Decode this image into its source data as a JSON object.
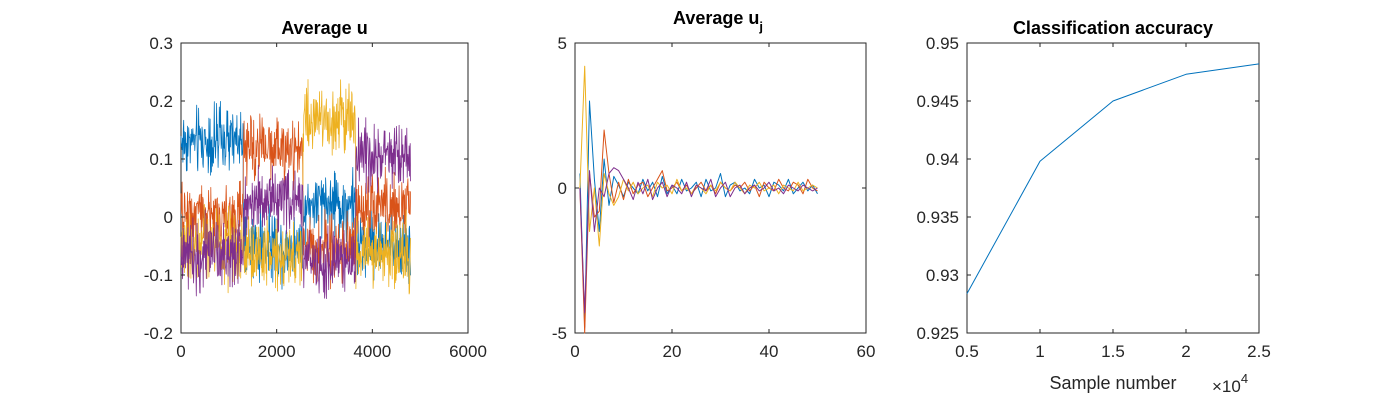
{
  "figure": {
    "colors": [
      "#0072bd",
      "#d95319",
      "#edb120",
      "#7e2f8e"
    ]
  },
  "chart_data": [
    {
      "type": "line",
      "title": "Average u",
      "xlabel": "",
      "ylabel": "",
      "xlim": [
        0,
        6000
      ],
      "ylim": [
        -0.2,
        0.3
      ],
      "xticks": [
        0,
        2000,
        4000,
        6000
      ],
      "xtick_labels": [
        "0",
        "2000",
        "4000",
        "6000"
      ],
      "yticks": [
        -0.2,
        -0.1,
        0,
        0.1,
        0.2,
        0.3
      ],
      "ytick_labels": [
        "-0.2",
        "-0.1",
        "0",
        "0.1",
        "0.2",
        "0.3"
      ],
      "grid": false,
      "x_range": [
        0,
        4800
      ],
      "segment_edges": [
        0,
        1300,
        2550,
        3650,
        4800
      ],
      "series": [
        {
          "color": "#0072bd",
          "segment_levels": [
            0.13,
            -0.05,
            0.02,
            -0.05
          ]
        },
        {
          "color": "#d95319",
          "segment_levels": [
            0.0,
            0.12,
            -0.05,
            0.02
          ]
        },
        {
          "color": "#edb120",
          "segment_levels": [
            -0.05,
            -0.06,
            0.17,
            -0.06
          ]
        },
        {
          "color": "#7e2f8e",
          "segment_levels": [
            -0.06,
            0.03,
            -0.08,
            0.1
          ]
        }
      ],
      "noise_amplitude": 0.028
    },
    {
      "type": "line",
      "title": "Average u",
      "title_subscript": "j",
      "xlabel": "",
      "ylabel": "",
      "xlim": [
        0,
        60
      ],
      "ylim": [
        -5,
        5
      ],
      "xticks": [
        0,
        20,
        40,
        60
      ],
      "xtick_labels": [
        "0",
        "20",
        "40",
        "60"
      ],
      "yticks": [
        -5,
        0,
        5
      ],
      "ytick_labels": [
        "-5",
        "0",
        "5"
      ],
      "grid": false,
      "x": [
        1,
        2,
        3,
        4,
        5,
        6,
        7,
        8,
        9,
        10,
        11,
        12,
        13,
        14,
        15,
        16,
        17,
        18,
        19,
        20,
        21,
        22,
        23,
        24,
        25,
        26,
        27,
        28,
        29,
        30,
        31,
        32,
        33,
        34,
        35,
        36,
        37,
        38,
        39,
        40,
        41,
        42,
        43,
        44,
        45,
        46,
        47,
        48,
        49,
        50
      ],
      "series": [
        {
          "color": "#0072bd",
          "values": [
            0.5,
            -4.8,
            3.0,
            0.3,
            -1.5,
            1.0,
            -0.6,
            0.4,
            0.1,
            -0.3,
            0.2,
            0.0,
            -0.2,
            0.3,
            -0.1,
            0.2,
            -0.3,
            0.4,
            -0.2,
            0.1,
            -0.2,
            0.3,
            -0.1,
            0.0,
            0.2,
            -0.3,
            0.3,
            -0.1,
            0.0,
            0.5,
            -0.3,
            0.1,
            0.2,
            -0.1,
            0.0,
            -0.2,
            0.3,
            0.0,
            0.1,
            -0.3,
            0.2,
            0.1,
            -0.1,
            0.3,
            -0.2,
            0.0,
            0.2,
            -0.1,
            0.1,
            -0.2
          ]
        },
        {
          "color": "#d95319",
          "values": [
            0.0,
            -5.0,
            0.5,
            -1.0,
            -0.8,
            2.0,
            0.5,
            -0.5,
            0.2,
            -0.4,
            0.3,
            -0.2,
            0.1,
            0.2,
            -0.3,
            0.0,
            0.3,
            0.6,
            -0.1,
            0.0,
            0.2,
            -0.1,
            0.1,
            -0.2,
            0.0,
            0.2,
            -0.1,
            0.1,
            -0.2,
            0.2,
            0.0,
            -0.1,
            0.1,
            0.0,
            0.2,
            -0.1,
            0.1,
            -0.3,
            0.2,
            0.0,
            -0.1,
            0.3,
            0.0,
            -0.1,
            0.2,
            0.1,
            -0.2,
            0.3,
            0.0,
            -0.1
          ]
        },
        {
          "color": "#edb120",
          "values": [
            0.0,
            4.2,
            -1.5,
            0.0,
            -2.0,
            0.5,
            -0.2,
            -0.6,
            -0.3,
            0.3,
            -0.1,
            0.2,
            -0.2,
            0.0,
            0.1,
            -0.3,
            0.2,
            0.0,
            0.1,
            -0.2,
            0.3,
            -0.1,
            0.0,
            -0.2,
            0.1,
            0.0,
            -0.2,
            0.1,
            -0.1,
            0.2,
            0.0,
            -0.1,
            0.2,
            0.0,
            -0.2,
            0.1,
            0.0,
            0.2,
            -0.1,
            0.0,
            0.1,
            -0.2,
            0.1,
            0.0,
            -0.1,
            0.2,
            -0.1,
            0.0,
            0.1,
            0.0
          ]
        },
        {
          "color": "#7e2f8e",
          "values": [
            0.0,
            -4.3,
            0.6,
            -1.5,
            0.0,
            -0.3,
            0.5,
            0.7,
            0.6,
            0.3,
            0.0,
            -0.4,
            0.2,
            -0.2,
            0.3,
            -0.4,
            0.0,
            0.2,
            -0.3,
            0.1,
            0.0,
            -0.2,
            0.2,
            -0.3,
            0.1,
            0.0,
            -0.1,
            0.3,
            -0.3,
            0.0,
            0.2,
            -0.3,
            0.0,
            0.1,
            -0.2,
            0.0,
            0.1,
            -0.1,
            0.0,
            0.2,
            -0.1,
            0.0,
            -0.2,
            0.1,
            0.0,
            -0.1,
            0.1,
            0.0,
            -0.1,
            0.0
          ]
        }
      ]
    },
    {
      "type": "line",
      "title": "Classification accuracy",
      "xlabel": "Sample number",
      "x_exponent_label": "×10",
      "x_exponent": "4",
      "ylabel": "",
      "xlim": [
        0.5,
        2.5
      ],
      "ylim": [
        0.925,
        0.95
      ],
      "xticks": [
        0.5,
        1,
        1.5,
        2,
        2.5
      ],
      "xtick_labels": [
        "0.5",
        "1",
        "1.5",
        "2",
        "2.5"
      ],
      "yticks": [
        0.925,
        0.93,
        0.935,
        0.94,
        0.945,
        0.95
      ],
      "ytick_labels": [
        "0.925",
        "0.93",
        "0.935",
        "0.94",
        "0.945",
        "0.95"
      ],
      "grid": false,
      "x": [
        0.5,
        1.0,
        1.5,
        2.0,
        2.5
      ],
      "series": [
        {
          "color": "#0072bd",
          "values": [
            0.9284,
            0.9398,
            0.945,
            0.9473,
            0.9482
          ]
        }
      ]
    }
  ]
}
